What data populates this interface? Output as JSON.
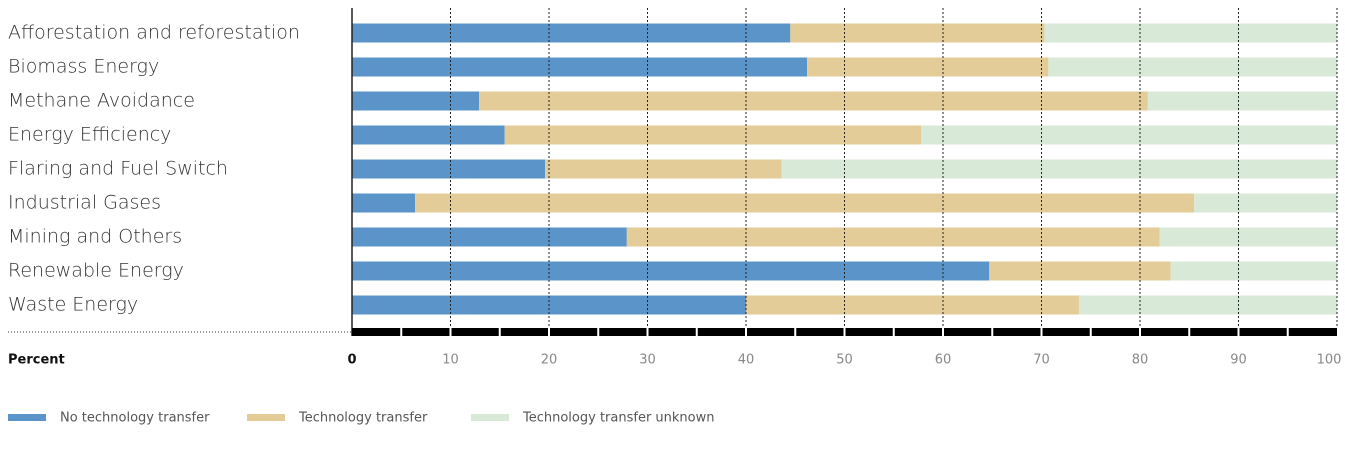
{
  "chart_data": {
    "type": "stacked-bar-horizontal",
    "x_axis_label": "Percent",
    "categories": [
      "Afforestation and reforestation",
      "Biomass Energy",
      "Methane Avoidance",
      "Energy Efficiency",
      "Flaring and Fuel Switch",
      "Industrial Gases",
      "Mining and Others",
      "Renewable Energy",
      "Waste Energy"
    ],
    "series": [
      {
        "name": "No technology transfer",
        "color": "#5b94c9",
        "values": [
          44.5,
          46.2,
          12.9,
          15.5,
          19.6,
          6.4,
          27.9,
          64.7,
          40.0
        ]
      },
      {
        "name": "Technology transfer",
        "color": "#e3cc98",
        "values": [
          25.8,
          24.5,
          67.9,
          42.3,
          24.0,
          79.1,
          54.1,
          18.4,
          33.8
        ]
      },
      {
        "name": "Technology transfer unknown",
        "color": "#d8ead7",
        "values": [
          29.7,
          29.3,
          19.2,
          42.2,
          56.4,
          14.5,
          18.0,
          16.9,
          26.2
        ]
      }
    ],
    "xlim": [
      0,
      100
    ],
    "xticks": [
      0,
      10,
      20,
      30,
      40,
      50,
      60,
      70,
      80,
      90,
      100
    ],
    "grid": true
  }
}
